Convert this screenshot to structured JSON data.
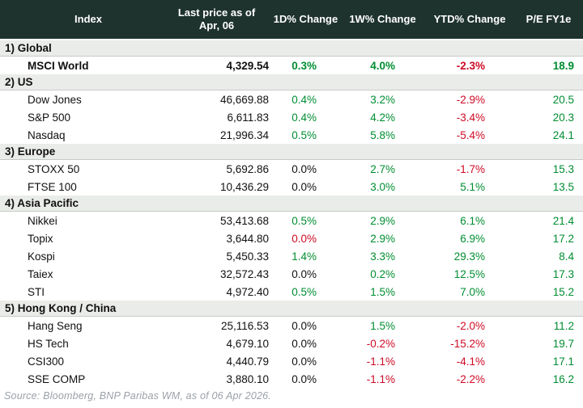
{
  "table": {
    "header": {
      "index": "Index",
      "price_line1": "Last price as of",
      "price_line2": "Apr, 06",
      "d1": "1D% Change",
      "w1": "1W% Change",
      "ytd": "YTD% Change",
      "pe": "P/E FY1e"
    },
    "sections": [
      {
        "label": "1) Global",
        "rows": [
          {
            "name": "MSCI World",
            "bold": true,
            "price": "4,329.54",
            "d1": "0.3%",
            "d1_color": "green",
            "w1": "4.0%",
            "w1_color": "green",
            "ytd": "-2.3%",
            "ytd_color": "red",
            "pe": "18.9",
            "pe_color": "green"
          }
        ]
      },
      {
        "label": "2) US",
        "rows": [
          {
            "name": "Dow Jones",
            "bold": false,
            "price": "46,669.88",
            "d1": "0.4%",
            "d1_color": "green",
            "w1": "3.2%",
            "w1_color": "green",
            "ytd": "-2.9%",
            "ytd_color": "red",
            "pe": "20.5",
            "pe_color": "green"
          },
          {
            "name": "S&P 500",
            "bold": false,
            "price": "6,611.83",
            "d1": "0.4%",
            "d1_color": "green",
            "w1": "4.2%",
            "w1_color": "green",
            "ytd": "-3.4%",
            "ytd_color": "red",
            "pe": "20.3",
            "pe_color": "green"
          },
          {
            "name": "Nasdaq",
            "bold": false,
            "price": "21,996.34",
            "d1": "0.5%",
            "d1_color": "green",
            "w1": "5.8%",
            "w1_color": "green",
            "ytd": "-5.4%",
            "ytd_color": "red",
            "pe": "24.1",
            "pe_color": "green"
          }
        ]
      },
      {
        "label": "3) Europe",
        "rows": [
          {
            "name": "STOXX 50",
            "bold": false,
            "price": "5,692.86",
            "d1": "0.0%",
            "d1_color": "flat",
            "w1": "2.7%",
            "w1_color": "green",
            "ytd": "-1.7%",
            "ytd_color": "red",
            "pe": "15.3",
            "pe_color": "green"
          },
          {
            "name": "FTSE 100",
            "bold": false,
            "price": "10,436.29",
            "d1": "0.0%",
            "d1_color": "flat",
            "w1": "3.0%",
            "w1_color": "green",
            "ytd": "5.1%",
            "ytd_color": "green",
            "pe": "13.5",
            "pe_color": "green"
          }
        ]
      },
      {
        "label": "4) Asia Pacific",
        "rows": [
          {
            "name": "Nikkei",
            "bold": false,
            "price": "53,413.68",
            "d1": "0.5%",
            "d1_color": "green",
            "w1": "2.9%",
            "w1_color": "green",
            "ytd": "6.1%",
            "ytd_color": "green",
            "pe": "21.4",
            "pe_color": "green"
          },
          {
            "name": "Topix",
            "bold": false,
            "price": "3,644.80",
            "d1": "0.0%",
            "d1_color": "red",
            "w1": "2.9%",
            "w1_color": "green",
            "ytd": "6.9%",
            "ytd_color": "green",
            "pe": "17.2",
            "pe_color": "green"
          },
          {
            "name": "Kospi",
            "bold": false,
            "price": "5,450.33",
            "d1": "1.4%",
            "d1_color": "green",
            "w1": "3.3%",
            "w1_color": "green",
            "ytd": "29.3%",
            "ytd_color": "green",
            "pe": "8.4",
            "pe_color": "green"
          },
          {
            "name": "Taiex",
            "bold": false,
            "price": "32,572.43",
            "d1": "0.0%",
            "d1_color": "flat",
            "w1": "0.2%",
            "w1_color": "green",
            "ytd": "12.5%",
            "ytd_color": "green",
            "pe": "17.3",
            "pe_color": "green"
          },
          {
            "name": "STI",
            "bold": false,
            "price": "4,972.40",
            "d1": "0.5%",
            "d1_color": "green",
            "w1": "1.5%",
            "w1_color": "green",
            "ytd": "7.0%",
            "ytd_color": "green",
            "pe": "15.2",
            "pe_color": "green"
          }
        ]
      },
      {
        "label": "5) Hong Kong / China",
        "rows": [
          {
            "name": "Hang Seng",
            "bold": false,
            "price": "25,116.53",
            "d1": "0.0%",
            "d1_color": "flat",
            "w1": "1.5%",
            "w1_color": "green",
            "ytd": "-2.0%",
            "ytd_color": "red",
            "pe": "11.2",
            "pe_color": "green"
          },
          {
            "name": "HS Tech",
            "bold": false,
            "price": "4,679.10",
            "d1": "0.0%",
            "d1_color": "flat",
            "w1": "-0.2%",
            "w1_color": "red",
            "ytd": "-15.2%",
            "ytd_color": "red",
            "pe": "19.7",
            "pe_color": "green"
          },
          {
            "name": "CSI300",
            "bold": false,
            "price": "4,440.79",
            "d1": "0.0%",
            "d1_color": "flat",
            "w1": "-1.1%",
            "w1_color": "red",
            "ytd": "-4.1%",
            "ytd_color": "red",
            "pe": "17.1",
            "pe_color": "green"
          },
          {
            "name": "SSE COMP",
            "bold": false,
            "price": "3,880.10",
            "d1": "0.0%",
            "d1_color": "flat",
            "w1": "-1.1%",
            "w1_color": "red",
            "ytd": "-2.2%",
            "ytd_color": "red",
            "pe": "16.2",
            "pe_color": "green"
          }
        ]
      }
    ]
  },
  "source": "Source: Bloomberg, BNP Paribas WM, as of 06 Apr 2026.",
  "colors": {
    "green": "#008d31",
    "red": "#ce0a24",
    "flat": "#101010",
    "header_bg": "#1f332e",
    "band_bg": "#eaece9"
  },
  "chart_data": {
    "type": "table",
    "title": "Equity indices overview",
    "columns": [
      "Index",
      "Last price as of Apr, 06",
      "1D% Change",
      "1W% Change",
      "YTD% Change",
      "P/E FY1e"
    ],
    "sections": [
      {
        "label": "1) Global",
        "rows": [
          [
            "MSCI World",
            4329.54,
            0.3,
            4.0,
            -2.3,
            18.9
          ]
        ]
      },
      {
        "label": "2) US",
        "rows": [
          [
            "Dow Jones",
            46669.88,
            0.4,
            3.2,
            -2.9,
            20.5
          ],
          [
            "S&P 500",
            6611.83,
            0.4,
            4.2,
            -3.4,
            20.3
          ],
          [
            "Nasdaq",
            21996.34,
            0.5,
            5.8,
            -5.4,
            24.1
          ]
        ]
      },
      {
        "label": "3) Europe",
        "rows": [
          [
            "STOXX 50",
            5692.86,
            0.0,
            2.7,
            -1.7,
            15.3
          ],
          [
            "FTSE 100",
            10436.29,
            0.0,
            3.0,
            5.1,
            13.5
          ]
        ]
      },
      {
        "label": "4) Asia Pacific",
        "rows": [
          [
            "Nikkei",
            53413.68,
            0.5,
            2.9,
            6.1,
            21.4
          ],
          [
            "Topix",
            3644.8,
            0.0,
            2.9,
            6.9,
            17.2
          ],
          [
            "Kospi",
            5450.33,
            1.4,
            3.3,
            29.3,
            8.4
          ],
          [
            "Taiex",
            32572.43,
            0.0,
            0.2,
            12.5,
            17.3
          ],
          [
            "STI",
            4972.4,
            0.5,
            1.5,
            7.0,
            15.2
          ]
        ]
      },
      {
        "label": "5) Hong Kong / China",
        "rows": [
          [
            "Hang Seng",
            25116.53,
            0.0,
            1.5,
            -2.0,
            11.2
          ],
          [
            "HS Tech",
            4679.1,
            0.0,
            -0.2,
            -15.2,
            19.7
          ],
          [
            "CSI300",
            4440.79,
            0.0,
            -1.1,
            -4.1,
            17.1
          ],
          [
            "SSE COMP",
            3880.1,
            0.0,
            -1.1,
            -2.2,
            16.2
          ]
        ]
      }
    ],
    "source_note": "Source: Bloomberg, BNP Paribas WM, as of 06 Apr 2026."
  }
}
